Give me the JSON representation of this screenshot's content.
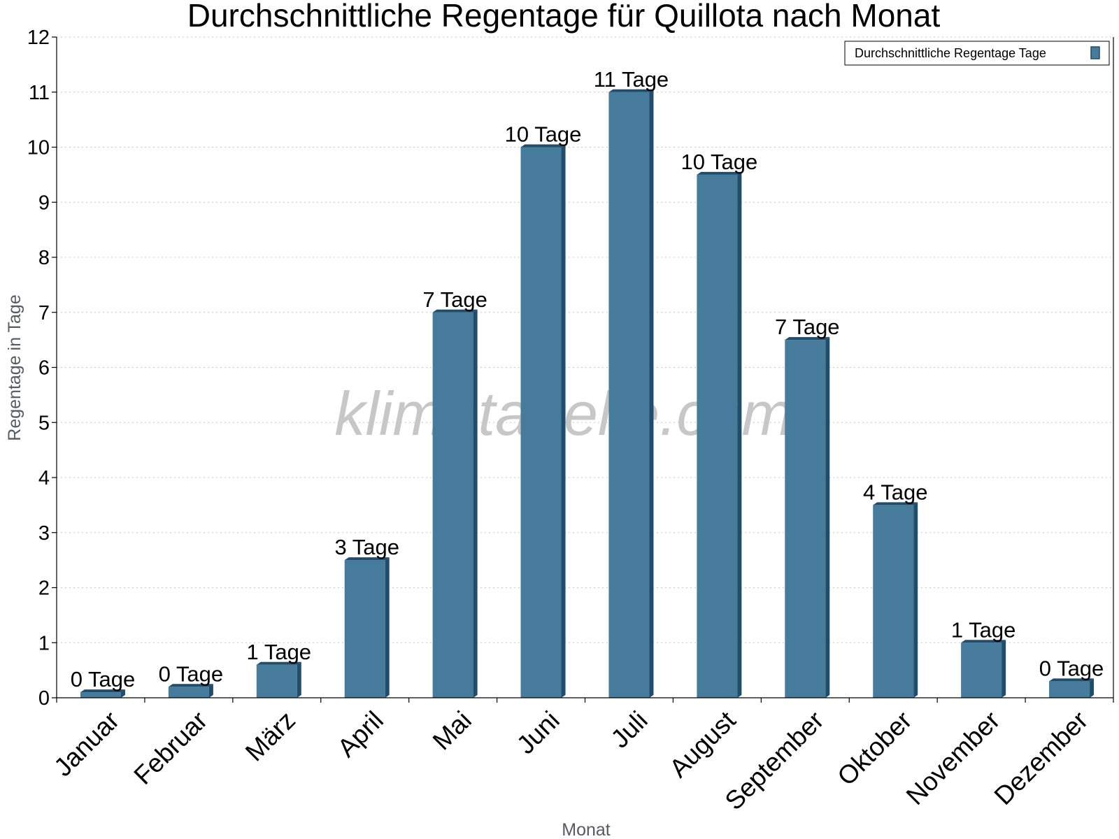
{
  "chart_data": {
    "type": "bar",
    "title": "Durchschnittliche Regentage für Quillota nach Monat",
    "xlabel": "Monat",
    "ylabel": "Regentage in Tage",
    "ylim": [
      0,
      12
    ],
    "yticks": [
      0,
      1,
      2,
      3,
      4,
      5,
      6,
      7,
      8,
      9,
      10,
      11,
      12
    ],
    "grid": true,
    "legend_position": "top-right",
    "categories": [
      "Januar",
      "Februar",
      "März",
      "April",
      "Mai",
      "Juni",
      "Juli",
      "August",
      "September",
      "Oktober",
      "November",
      "Dezember"
    ],
    "series": [
      {
        "name": "Durchschnittliche Regentage Tage",
        "values": [
          0.1,
          0.2,
          0.6,
          2.5,
          7.0,
          10.0,
          11.0,
          9.5,
          6.5,
          3.5,
          1.0,
          0.3
        ],
        "data_labels": [
          "0 Tage",
          "0 Tage",
          "1 Tage",
          "3 Tage",
          "7 Tage",
          "10 Tage",
          "11 Tage",
          "10 Tage",
          "7 Tage",
          "4 Tage",
          "1 Tage",
          "0 Tage"
        ],
        "color": "#467b9c",
        "side_color": "#1f4d6b"
      }
    ]
  },
  "watermark": "klimatabelle.com"
}
